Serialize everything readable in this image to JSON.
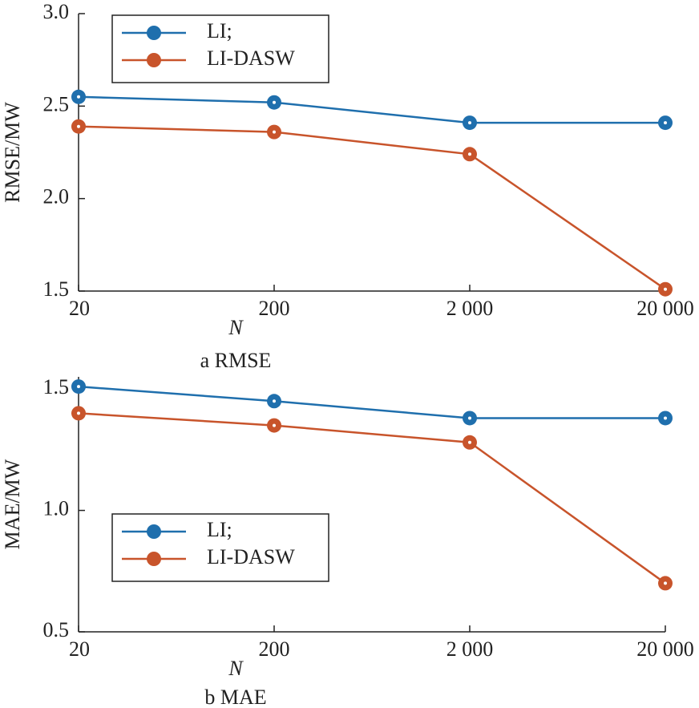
{
  "chart_data": [
    {
      "type": "line",
      "caption": "a RMSE",
      "x_label": "N",
      "y_label": "RMSE/MW",
      "categories": [
        "20",
        "200",
        "2 000",
        "20 000"
      ],
      "ylim": [
        1.5,
        3.0
      ],
      "yticks": [
        {
          "value": 1.5,
          "label": "1.5"
        },
        {
          "value": 2.0,
          "label": "2.0"
        },
        {
          "value": 2.5,
          "label": "2.5"
        },
        {
          "value": 3.0,
          "label": "3.0"
        }
      ],
      "legend": "upper left",
      "series": [
        {
          "name": "LI;",
          "color": "#1f6fad",
          "values": [
            2.55,
            2.52,
            2.41,
            2.41
          ]
        },
        {
          "name": "LI-DASW",
          "color": "#c8542b",
          "values": [
            2.39,
            2.36,
            2.24,
            1.51
          ]
        }
      ]
    },
    {
      "type": "line",
      "caption": "b MAE",
      "x_label": "N",
      "y_label": "MAE/MW",
      "categories": [
        "20",
        "200",
        "2 000",
        "20 000"
      ],
      "ylim": [
        0.5,
        1.55
      ],
      "yticks": [
        0.5,
        {
          "value": 1.0,
          "label": "1.0"
        },
        1.5
      ],
      "legend": "center left",
      "series": [
        {
          "name": "LI;",
          "color": "#1f6fad",
          "values": [
            1.51,
            1.45,
            1.38,
            1.38
          ]
        },
        {
          "name": "LI-DASW",
          "color": "#c8542b",
          "values": [
            1.4,
            1.35,
            1.28,
            0.7
          ]
        }
      ]
    }
  ]
}
